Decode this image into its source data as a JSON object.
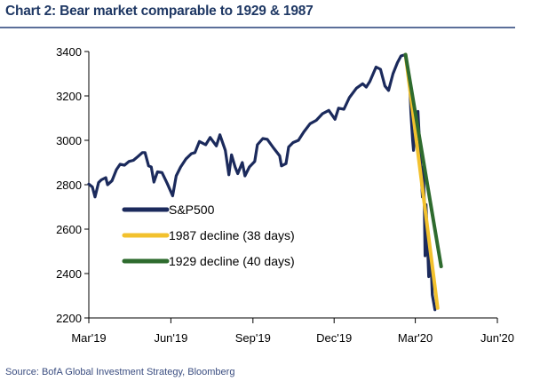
{
  "header": {
    "title": "Chart 2: Bear market comparable to 1929 & 1987"
  },
  "footer": {
    "source": "Source: BofA Global Investment Strategy, Bloomberg"
  },
  "colors": {
    "sp500": "#1b2a5c",
    "decline_1987": "#f2c12e",
    "decline_1929": "#2e6b2e",
    "title": "#1f3864",
    "source": "#3a4d80"
  },
  "chart_data": {
    "type": "line",
    "title": "Chart 2: Bear market comparable to 1929 & 1987",
    "xlabel": "",
    "ylabel": "",
    "xlim": [
      "2019-03-01",
      "2020-06-01"
    ],
    "ylim": [
      2200,
      3400
    ],
    "x_ticks": [
      "2019-03-01",
      "2019-06-01",
      "2019-09-01",
      "2019-12-01",
      "2020-03-01",
      "2020-06-01"
    ],
    "x_tick_labels": [
      "Mar'19",
      "Jun'19",
      "Sep'19",
      "Dec'19",
      "Mar'20",
      "Jun'20"
    ],
    "y_ticks": [
      2200,
      2400,
      2600,
      2800,
      3000,
      3200,
      3400
    ],
    "y_tick_labels": [
      "2200",
      "2400",
      "2600",
      "2800",
      "3000",
      "3200",
      "3400"
    ],
    "grid": false,
    "legend_position": "lower-left",
    "series": [
      {
        "name": "S&P500",
        "color": "#1b2a5c",
        "x": [
          "2019-03-01",
          "2019-03-05",
          "2019-03-08",
          "2019-03-12",
          "2019-03-15",
          "2019-03-20",
          "2019-03-22",
          "2019-03-27",
          "2019-04-01",
          "2019-04-05",
          "2019-04-10",
          "2019-04-15",
          "2019-04-20",
          "2019-04-25",
          "2019-04-30",
          "2019-05-03",
          "2019-05-07",
          "2019-05-10",
          "2019-05-13",
          "2019-05-17",
          "2019-05-22",
          "2019-05-28",
          "2019-06-03",
          "2019-06-07",
          "2019-06-12",
          "2019-06-18",
          "2019-06-24",
          "2019-06-28",
          "2019-07-03",
          "2019-07-10",
          "2019-07-15",
          "2019-07-22",
          "2019-07-26",
          "2019-08-01",
          "2019-08-05",
          "2019-08-08",
          "2019-08-12",
          "2019-08-15",
          "2019-08-20",
          "2019-08-23",
          "2019-08-28",
          "2019-09-03",
          "2019-09-06",
          "2019-09-12",
          "2019-09-17",
          "2019-09-24",
          "2019-10-01",
          "2019-10-03",
          "2019-10-08",
          "2019-10-11",
          "2019-10-16",
          "2019-10-22",
          "2019-10-28",
          "2019-11-04",
          "2019-11-11",
          "2019-11-18",
          "2019-11-25",
          "2019-12-02",
          "2019-12-06",
          "2019-12-12",
          "2019-12-18",
          "2019-12-26",
          "2020-01-02",
          "2020-01-06",
          "2020-01-10",
          "2020-01-17",
          "2020-01-22",
          "2020-01-27",
          "2020-01-31",
          "2020-02-05",
          "2020-02-10",
          "2020-02-14",
          "2020-02-19",
          "2020-02-21",
          "2020-02-24",
          "2020-02-25",
          "2020-02-27",
          "2020-02-28",
          "2020-03-02",
          "2020-03-03",
          "2020-03-04",
          "2020-03-06",
          "2020-03-09",
          "2020-03-10",
          "2020-03-11",
          "2020-03-12",
          "2020-03-13",
          "2020-03-16",
          "2020-03-17",
          "2020-03-18",
          "2020-03-19",
          "2020-03-20",
          "2020-03-23"
        ],
        "y": [
          2803,
          2790,
          2745,
          2810,
          2822,
          2832,
          2800,
          2818,
          2868,
          2892,
          2888,
          2905,
          2910,
          2927,
          2945,
          2945,
          2885,
          2880,
          2812,
          2858,
          2855,
          2805,
          2750,
          2840,
          2880,
          2917,
          2940,
          2945,
          2995,
          2980,
          3013,
          2975,
          3025,
          2955,
          2845,
          2935,
          2880,
          2850,
          2900,
          2840,
          2880,
          2905,
          2980,
          3008,
          3005,
          2966,
          2930,
          2885,
          2895,
          2970,
          2990,
          3000,
          3038,
          3075,
          3090,
          3120,
          3135,
          3095,
          3145,
          3140,
          3192,
          3235,
          3255,
          3240,
          3265,
          3330,
          3320,
          3245,
          3225,
          3300,
          3350,
          3380,
          3386,
          3337,
          3225,
          3128,
          3000,
          2955,
          3090,
          3000,
          3130,
          2975,
          2745,
          2880,
          2740,
          2480,
          2710,
          2386,
          2530,
          2400,
          2410,
          2305,
          2237
        ]
      },
      {
        "name": "1987 decline (38 days)",
        "color": "#f2c12e",
        "x": [
          "2020-02-19",
          "2020-03-26"
        ],
        "y": [
          3386,
          2245
        ]
      },
      {
        "name": "1929 decline (40 days)",
        "color": "#2e6b2e",
        "x": [
          "2020-02-19",
          "2020-03-30"
        ],
        "y": [
          3386,
          2432
        ]
      }
    ]
  }
}
